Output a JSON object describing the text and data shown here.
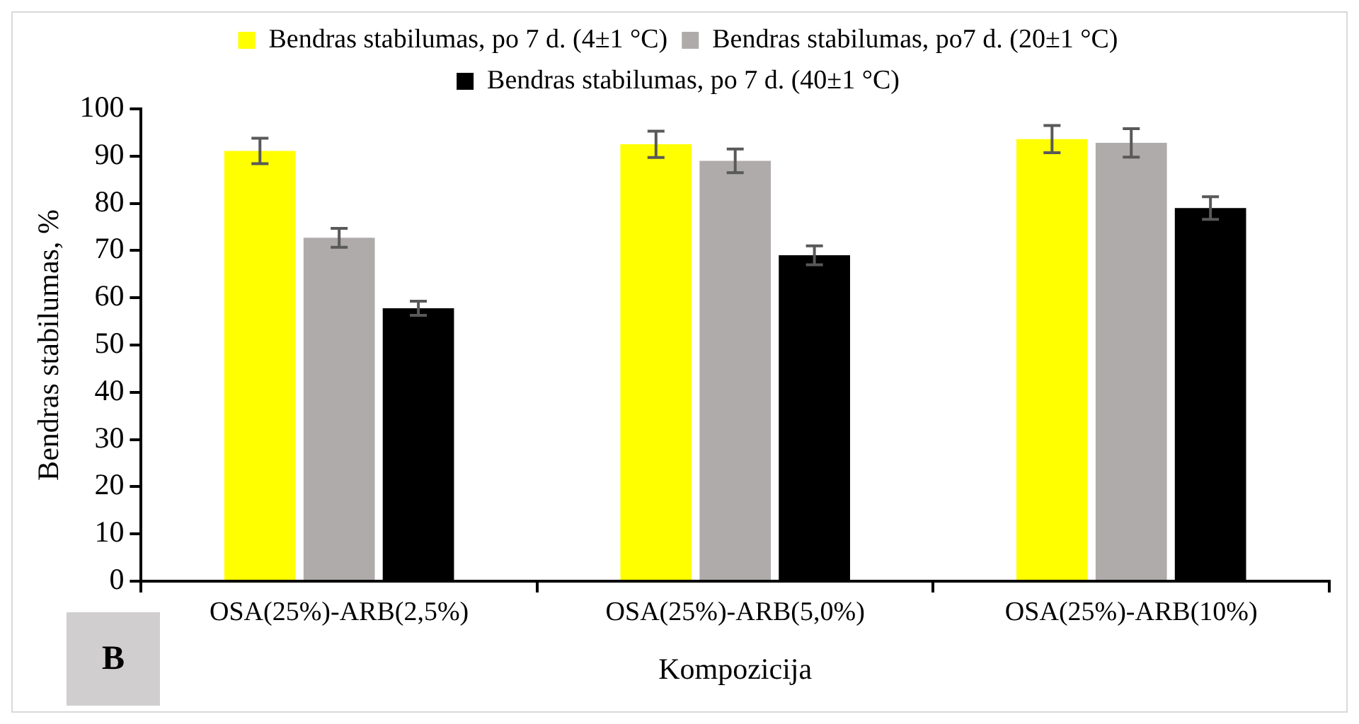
{
  "chart_data": {
    "type": "bar",
    "xlabel": "Kompozicija",
    "ylabel": "Bendras stabilumas, %",
    "annotations": [
      "B"
    ],
    "categories": [
      "OSA(25%)-ARB(2,5%)",
      "OSA(25%)-ARB(5,0%)",
      "OSA(25%)-ARB(10%)"
    ],
    "series": [
      {
        "name": "Bendras stabilumas, po 7 d. (4±1 °C)",
        "color": "#ffff00",
        "values": [
          91.1,
          92.5,
          93.6
        ],
        "errors": [
          2.7,
          2.8,
          2.9
        ]
      },
      {
        "name": "Bendras stabilumas, po7 d. (20±1 °C)",
        "color": "#afabab",
        "values": [
          72.7,
          89.0,
          92.8
        ],
        "errors": [
          2,
          2.5,
          3
        ]
      },
      {
        "name": "Bendras stabilumas, po 7 d. (40±1 °C)",
        "color": "#000000",
        "values": [
          57.8,
          69.0,
          79.0
        ],
        "errors": [
          1.5,
          2,
          2.4
        ]
      }
    ],
    "ylim": [
      0,
      100
    ],
    "yticks": [
      0,
      10,
      20,
      30,
      40,
      50,
      60,
      70,
      80,
      90,
      100
    ],
    "grid": false,
    "legend": "top"
  }
}
